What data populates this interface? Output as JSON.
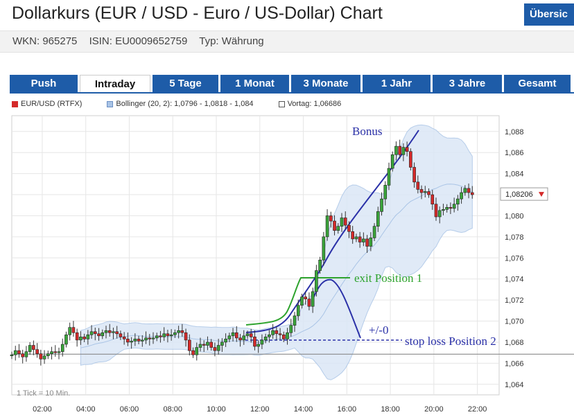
{
  "header": {
    "title": "Dollarkurs (EUR / USD - Euro / US-Dollar) Chart",
    "overview_label": "Übersic",
    "wkn": "WKN: 965275",
    "isin": "ISIN: EU0009652759",
    "type": "Typ: Währung"
  },
  "tabs": [
    {
      "label": "Push",
      "active": false
    },
    {
      "label": "Intraday",
      "active": true
    },
    {
      "label": "5 Tage",
      "active": false
    },
    {
      "label": "1 Monat",
      "active": false
    },
    {
      "label": "3 Monate",
      "active": false
    },
    {
      "label": "1 Jahr",
      "active": false
    },
    {
      "label": "3 Jahre",
      "active": false
    },
    {
      "label": "Gesamt",
      "active": false
    }
  ],
  "legend": {
    "series": "EUR/USD (RTFX)",
    "bollinger": "Bollinger (20, 2): 1,0796 - 1,0818 - 1,084",
    "previous": "Vortag: 1,06686"
  },
  "colors": {
    "tab_blue": "#1e5ca8",
    "candle_up": "#3aa43a",
    "candle_down": "#d42a2a",
    "band_fill": "#dbe7f6",
    "band_line": "#a9c4e6",
    "annotation_blue": "#2b31a8",
    "annotation_green": "#2ea32e"
  },
  "chart_data": {
    "type": "candlestick",
    "ylim": [
      1.063,
      1.0895
    ],
    "xlim": [
      0.6,
      23.0
    ],
    "x_ticks": [
      2,
      4,
      6,
      8,
      10,
      12,
      14,
      16,
      18,
      20,
      22
    ],
    "x_tick_labels": [
      "02:00",
      "04:00",
      "06:00",
      "08:00",
      "10:00",
      "12:00",
      "14:00",
      "16:00",
      "18:00",
      "20:00",
      "22:00"
    ],
    "y_ticks": [
      1.064,
      1.066,
      1.068,
      1.07,
      1.072,
      1.074,
      1.076,
      1.078,
      1.08,
      1.082,
      1.084,
      1.086,
      1.088
    ],
    "y_tick_labels": [
      "1,064",
      "1,066",
      "1,068",
      "1,070",
      "1,072",
      "1,074",
      "1,076",
      "1,078",
      "1,080",
      "1,082",
      "1,084",
      "1,086",
      "1,088"
    ],
    "tick_note": "1 Tick = 10 Min.",
    "previous_close": 1.06686,
    "last_price_label": "1,08206",
    "last_price": 1.08206,
    "close": [
      1.0668,
      1.0672,
      1.0669,
      1.0666,
      1.0671,
      1.0677,
      1.0673,
      1.0669,
      1.0664,
      1.0667,
      1.0669,
      1.0671,
      1.067,
      1.0671,
      1.0678,
      1.0687,
      1.0694,
      1.0689,
      1.0682,
      1.0685,
      1.0683,
      1.0687,
      1.069,
      1.0688,
      1.0686,
      1.0689,
      1.0691,
      1.0689,
      1.069,
      1.0688,
      1.0685,
      1.0683,
      1.068,
      1.0681,
      1.0683,
      1.0681,
      1.0682,
      1.0684,
      1.0683,
      1.0684,
      1.0686,
      1.0685,
      1.0688,
      1.0686,
      1.0687,
      1.0689,
      1.0691,
      1.0689,
      1.0682,
      1.0672,
      1.0668,
      1.0675,
      1.0678,
      1.0677,
      1.068,
      1.0675,
      1.0672,
      1.0677,
      1.068,
      1.0683,
      1.0686,
      1.0689,
      1.0684,
      1.0682,
      1.0686,
      1.0688,
      1.0685,
      1.0676,
      1.0678,
      1.0682,
      1.0685,
      1.0687,
      1.0691,
      1.0688,
      1.0687,
      1.0683,
      1.0689,
      1.0696,
      1.0705,
      1.0715,
      1.0723,
      1.0721,
      1.0714,
      1.0728,
      1.0748,
      1.0758,
      1.078,
      1.08,
      1.0795,
      1.0786,
      1.079,
      1.0798,
      1.0791,
      1.0785,
      1.0778,
      1.078,
      1.0775,
      1.0778,
      1.0771,
      1.0779,
      1.079,
      1.0804,
      1.0816,
      1.0829,
      1.0845,
      1.0858,
      1.0866,
      1.0858,
      1.0865,
      1.0861,
      1.0846,
      1.0832,
      1.0825,
      1.0822,
      1.0823,
      1.082,
      1.0811,
      1.0799,
      1.0805,
      1.0806,
      1.0808,
      1.0807,
      1.0811,
      1.0816,
      1.0822,
      1.0826,
      1.0822,
      1.082
    ]
  },
  "annotations": {
    "bonus": "Bonus",
    "exit": "exit Position 1",
    "breakeven": "+/-0",
    "stop_loss": "stop loss Position 2"
  }
}
